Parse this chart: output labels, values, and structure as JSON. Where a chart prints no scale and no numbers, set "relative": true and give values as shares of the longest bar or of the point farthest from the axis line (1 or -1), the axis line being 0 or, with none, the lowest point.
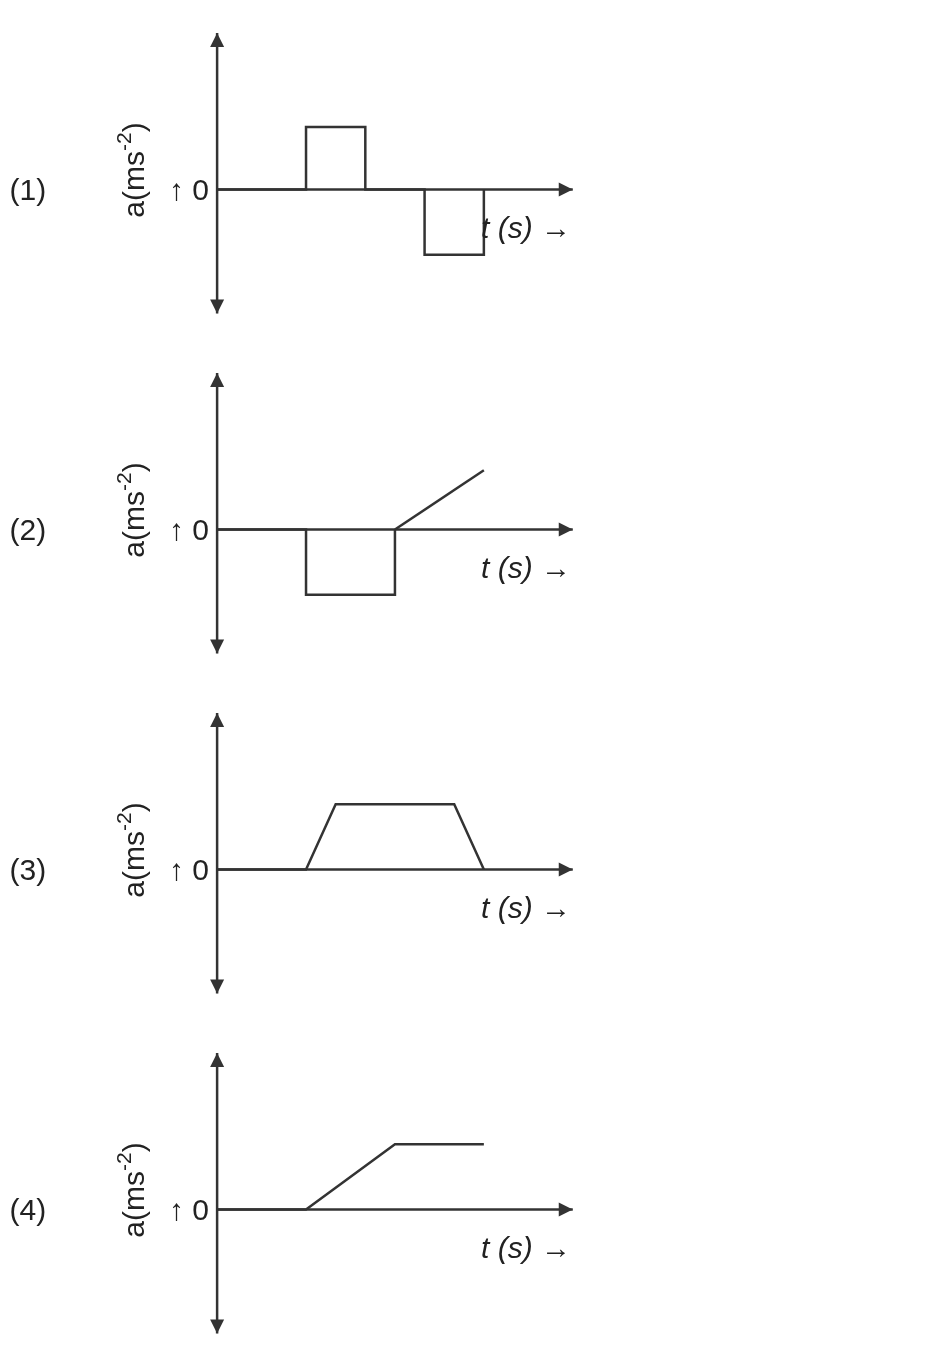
{
  "chart_data": [
    {
      "type": "step",
      "title": "(1)",
      "ylabel": "a(ms$^{-2}$)",
      "xlabel": "t (s) →",
      "annotations": [
        "↑ 0"
      ],
      "relative": true,
      "grid": false,
      "legend": false,
      "color": "#333333",
      "categories": [
        null,
        null,
        null,
        null,
        null,
        null,
        null,
        null,
        null,
        null
      ],
      "values": [
        0,
        0,
        0,
        0.96,
        0.96,
        0,
        0,
        -1,
        -1,
        0
      ]
    },
    {
      "type": "step",
      "title": "(2)",
      "ylabel": "a(ms$^{-2}$)",
      "xlabel": "t (s) →",
      "annotations": [
        "↑ 0"
      ],
      "relative": true,
      "grid": false,
      "legend": false,
      "categories": [
        null,
        null,
        null,
        null
      ],
      "series": [
        {
          "type": "step",
          "color": "#333333",
          "values": [
            0,
            -1,
            0,
            null
          ]
        },
        {
          "type": "line",
          "color": "#333333",
          "values": [
            null,
            null,
            0,
            0.91
          ]
        }
      ]
    },
    {
      "type": "line",
      "title": "(3)",
      "ylabel": "a(ms$^{-2}$)",
      "xlabel": "t (s) →",
      "annotations": [
        "↑ 0"
      ],
      "relative": true,
      "grid": false,
      "legend": false,
      "color": "#333333",
      "categories": [
        null,
        null,
        null,
        null,
        null,
        null,
        null,
        null,
        null,
        null
      ],
      "values": [
        0,
        0,
        0,
        0,
        1,
        1,
        1,
        1,
        1,
        0
      ]
    },
    {
      "type": "line",
      "title": "(4)",
      "ylabel": "a(ms$^{-2}$)",
      "xlabel": "t (s) →",
      "annotations": [
        "↑ 0"
      ],
      "relative": true,
      "grid": false,
      "legend": false,
      "color": "#333333",
      "categories": [
        null,
        null,
        null,
        null
      ],
      "values": [
        0,
        0,
        1,
        1
      ]
    }
  ]
}
